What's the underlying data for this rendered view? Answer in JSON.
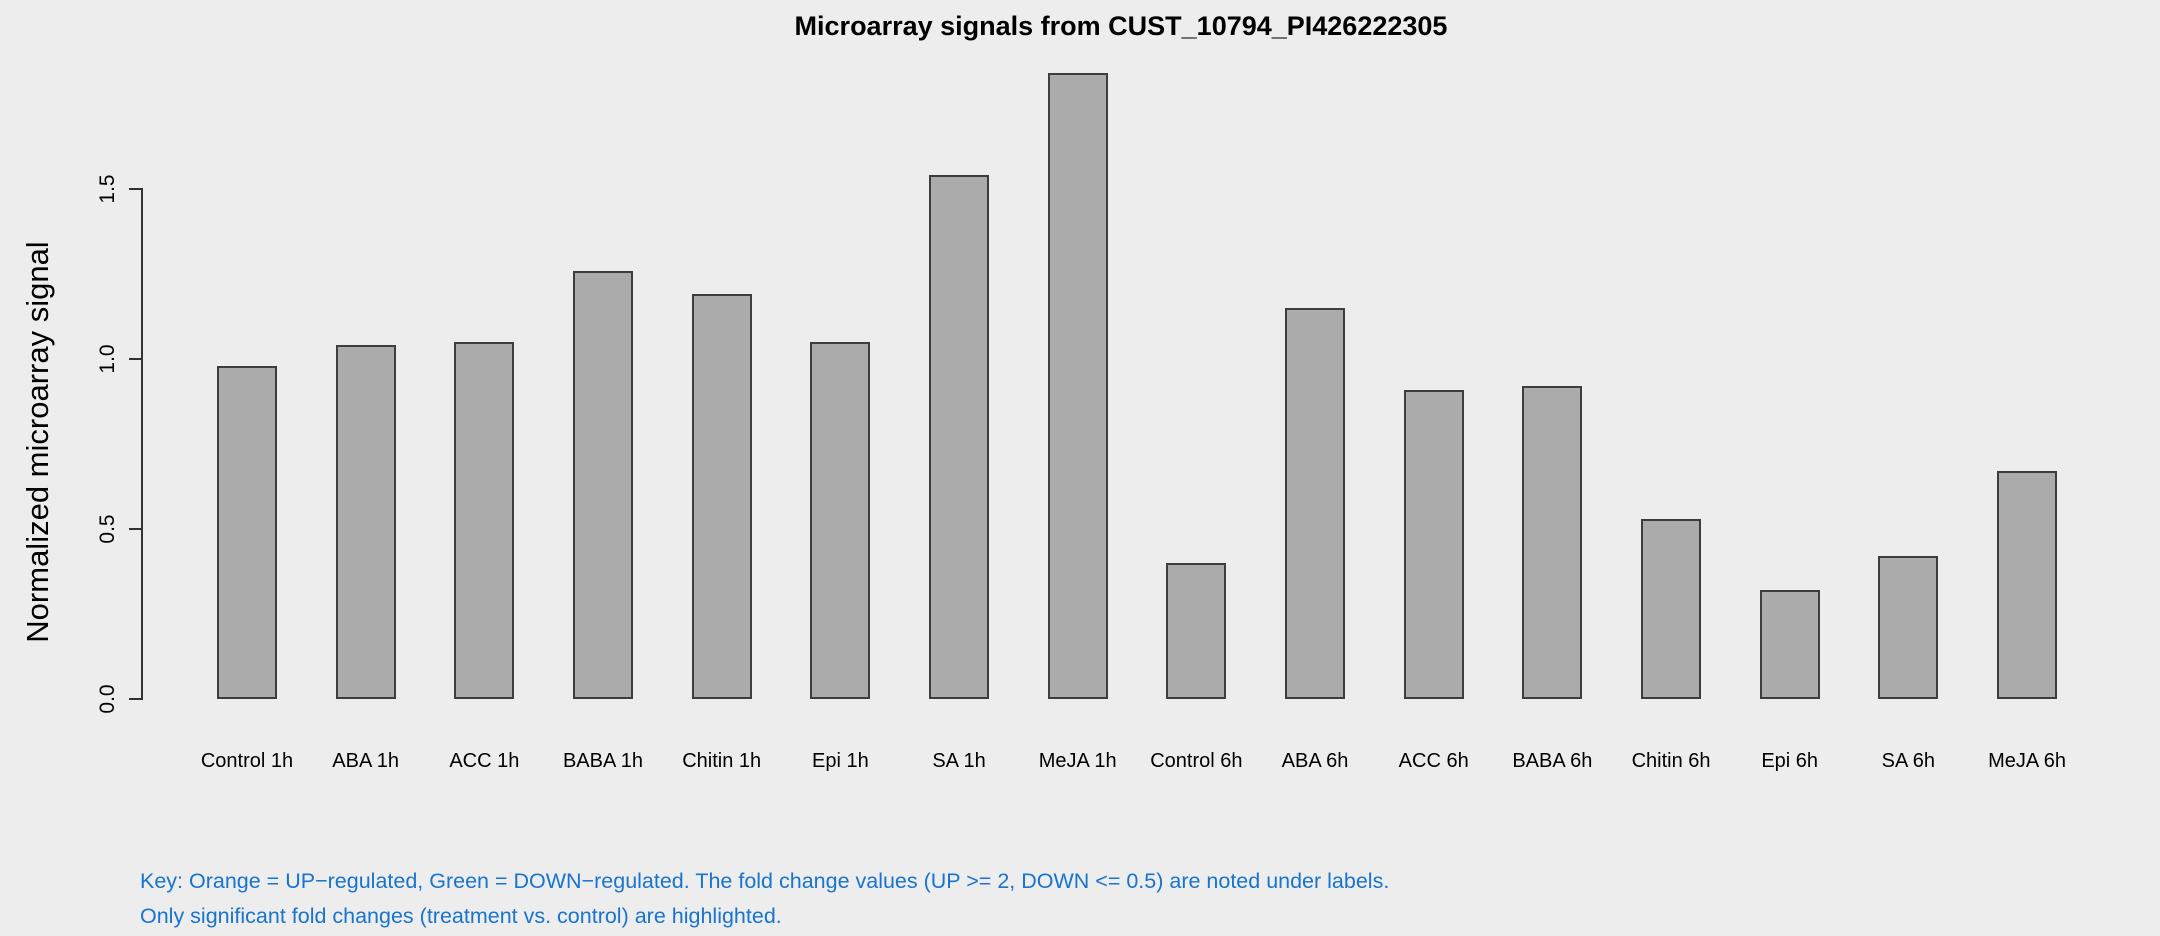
{
  "chart_data": {
    "type": "bar",
    "title": "Microarray signals from CUST_10794_PI426222305",
    "xlabel": "",
    "ylabel": "Normalized microarray signal",
    "categories": [
      "Control 1h",
      "ABA 1h",
      "ACC 1h",
      "BABA 1h",
      "Chitin 1h",
      "Epi 1h",
      "SA 1h",
      "MeJA 1h",
      "Control 6h",
      "ABA 6h",
      "ACC 6h",
      "BABA 6h",
      "Chitin 6h",
      "Epi 6h",
      "SA 6h",
      "MeJA 6h"
    ],
    "values": [
      0.98,
      1.04,
      1.05,
      1.26,
      1.19,
      1.05,
      1.54,
      1.84,
      0.4,
      1.15,
      0.91,
      0.92,
      0.53,
      0.32,
      0.42,
      0.67
    ],
    "yticks": [
      0.0,
      0.5,
      1.0,
      1.5
    ],
    "ytick_labels": [
      "0.0",
      "0.5",
      "1.0",
      "1.5"
    ],
    "ylim": [
      0,
      1.85
    ],
    "grid": false,
    "legend": "none",
    "colors": {
      "bar_fill": "#ABABAB",
      "bar_border": "#3d3d3d",
      "axis": "#333333",
      "background": "#EDEDED",
      "title_text": "#000000",
      "key_text": "#1874CD"
    }
  },
  "footer": {
    "key_line1": "Key: Orange = UP−regulated, Green = DOWN−regulated. The fold change values (UP >= 2, DOWN <= 0.5) are noted under labels.",
    "key_line2": "Only significant fold changes (treatment vs. control) are highlighted."
  }
}
